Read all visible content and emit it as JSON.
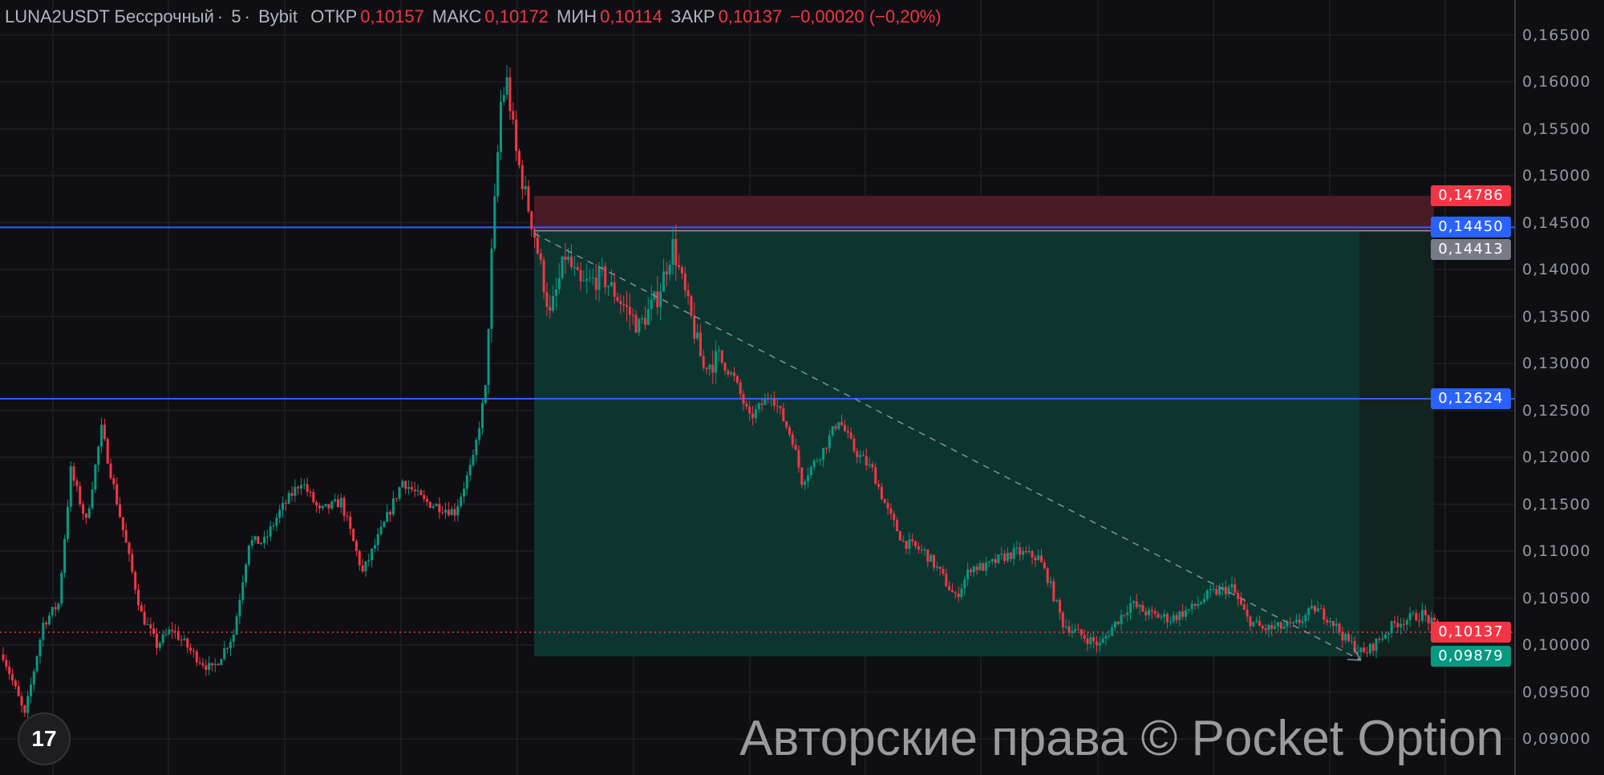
{
  "header": {
    "symbol": "LUNA2USDT Бессрочный",
    "interval": "5",
    "exchange": "Bybit",
    "open_label": "ОТКР",
    "open": "0,10157",
    "high_label": "МАКС",
    "high": "0,10172",
    "low_label": "МИН",
    "low": "0,10114",
    "close_label": "ЗАКР",
    "close": "0,10137",
    "change": "−0,00020 (−0,20%)"
  },
  "watermark": "Авторские права © Pocket Option",
  "logo": "TradingView",
  "colors": {
    "up": "#089981",
    "down": "#f23645",
    "line": "#2962ff",
    "bg": "#0f0f13",
    "target_zone": "#0d3530",
    "stop_zone": "#4a1b25"
  },
  "chart_data": {
    "type": "candlestick",
    "yaxis": {
      "min": 0.09,
      "max": 0.165,
      "ticks": [
        "0,16500",
        "0,16000",
        "0,15500",
        "0,15000",
        "0,14500",
        "0,14000",
        "0,13500",
        "0,13000",
        "0,12500",
        "0,12000",
        "0,11500",
        "0,11000",
        "0,10500",
        "0,10000",
        "0,09500",
        "0,09000"
      ],
      "tick_values": [
        0.165,
        0.16,
        0.155,
        0.15,
        0.145,
        0.14,
        0.135,
        0.13,
        0.125,
        0.12,
        0.115,
        0.11,
        0.105,
        0.1,
        0.095,
        0.09
      ]
    },
    "grid": true,
    "price_path": [
      [
        0,
        0.099
      ],
      [
        7,
        0.0924
      ],
      [
        13,
        0.1023
      ],
      [
        18,
        0.1044
      ],
      [
        22,
        0.1186
      ],
      [
        27,
        0.1131
      ],
      [
        32,
        0.123
      ],
      [
        37,
        0.1153
      ],
      [
        42,
        0.1077
      ],
      [
        45,
        0.1033
      ],
      [
        50,
        0.1
      ],
      [
        55,
        0.1017
      ],
      [
        62,
        0.099
      ],
      [
        68,
        0.0973
      ],
      [
        75,
        0.1012
      ],
      [
        80,
        0.111
      ],
      [
        85,
        0.111
      ],
      [
        90,
        0.1142
      ],
      [
        97,
        0.1175
      ],
      [
        103,
        0.1142
      ],
      [
        110,
        0.1153
      ],
      [
        117,
        0.1077
      ],
      [
        123,
        0.1121
      ],
      [
        130,
        0.1175
      ],
      [
        137,
        0.1153
      ],
      [
        147,
        0.1142
      ],
      [
        153,
        0.1197
      ],
      [
        157,
        0.1273
      ],
      [
        159,
        0.1415
      ],
      [
        162,
        0.1578
      ],
      [
        164,
        0.16
      ],
      [
        167,
        0.1524
      ],
      [
        170,
        0.148
      ],
      [
        173,
        0.1437
      ],
      [
        178,
        0.135
      ],
      [
        183,
        0.1415
      ],
      [
        188,
        0.1382
      ],
      [
        195,
        0.1393
      ],
      [
        200,
        0.1371
      ],
      [
        207,
        0.1339
      ],
      [
        213,
        0.1371
      ],
      [
        218,
        0.1426
      ],
      [
        223,
        0.136
      ],
      [
        228,
        0.1295
      ],
      [
        233,
        0.1306
      ],
      [
        238,
        0.1284
      ],
      [
        243,
        0.1241
      ],
      [
        250,
        0.1268
      ],
      [
        257,
        0.1219
      ],
      [
        260,
        0.1175
      ],
      [
        267,
        0.1208
      ],
      [
        272,
        0.1241
      ],
      [
        277,
        0.1208
      ],
      [
        283,
        0.1186
      ],
      [
        288,
        0.1142
      ],
      [
        293,
        0.111
      ],
      [
        300,
        0.1099
      ],
      [
        305,
        0.1077
      ],
      [
        310,
        0.105
      ],
      [
        315,
        0.1083
      ],
      [
        320,
        0.1083
      ],
      [
        325,
        0.1093
      ],
      [
        330,
        0.1099
      ],
      [
        337,
        0.1093
      ],
      [
        340,
        0.1072
      ],
      [
        345,
        0.1023
      ],
      [
        350,
        0.1012
      ],
      [
        357,
        0.1
      ],
      [
        362,
        0.1023
      ],
      [
        367,
        0.1044
      ],
      [
        373,
        0.1033
      ],
      [
        380,
        0.1028
      ],
      [
        387,
        0.1039
      ],
      [
        393,
        0.1055
      ],
      [
        400,
        0.1061
      ],
      [
        405,
        0.1028
      ],
      [
        410,
        0.1017
      ],
      [
        420,
        0.102
      ],
      [
        427,
        0.1039
      ],
      [
        432,
        0.1028
      ],
      [
        437,
        0.1006
      ],
      [
        443,
        0.099
      ],
      [
        448,
        0.1006
      ],
      [
        453,
        0.1023
      ],
      [
        462,
        0.1033
      ],
      [
        468,
        0.1014
      ]
    ],
    "levels": [
      {
        "name": "stop",
        "value": 0.14786,
        "label": "0,14786",
        "color": "#f23645"
      },
      {
        "name": "resistance",
        "value": 0.1445,
        "label": "0,14450",
        "color": "#2962ff"
      },
      {
        "name": "entry",
        "value": 0.14413,
        "label": "0,14413",
        "color": "#787b86"
      },
      {
        "name": "support",
        "value": 0.12624,
        "label": "0,12624",
        "color": "#2962ff"
      },
      {
        "name": "last-price",
        "value": 0.10137,
        "label": "0,10137",
        "color": "#f23645"
      },
      {
        "name": "target",
        "value": 0.09879,
        "label": "0,09879",
        "color": "#089981"
      }
    ]
  }
}
